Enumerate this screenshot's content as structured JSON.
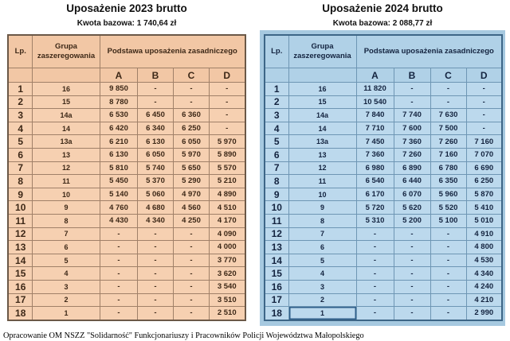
{
  "footer": "Opracowanie OM NSZZ \"Solidarność\" Funkcjonariuszy i Pracowników Policji Województwa Małopolskiego",
  "colors": {
    "peach_cell": "#f6d0b1",
    "peach_header": "#f2c7a5",
    "peach_border": "#a08068",
    "blue_cell": "#bcd9ed",
    "blue_header": "#b0d1e7",
    "blue_panel": "#a6c9e0",
    "blue_border": "#6e96b4"
  },
  "tables": [
    {
      "title": "Uposażenie 2023 brutto",
      "subtitle": "Kwota bazowa: 1 740,64 zł",
      "headers": {
        "lp": "Lp.",
        "group": "Grupa zaszeregowania",
        "base": "Podstawa uposażenia zasadniczego",
        "cols": [
          "A",
          "B",
          "C",
          "D"
        ]
      },
      "rows": [
        {
          "lp": "1",
          "group": "16",
          "v": [
            "9 850",
            "-",
            "-",
            "-"
          ]
        },
        {
          "lp": "2",
          "group": "15",
          "v": [
            "8 780",
            "-",
            "-",
            "-"
          ]
        },
        {
          "lp": "3",
          "group": "14a",
          "v": [
            "6 530",
            "6 450",
            "6 360",
            "-"
          ]
        },
        {
          "lp": "4",
          "group": "14",
          "v": [
            "6 420",
            "6 340",
            "6 250",
            "-"
          ]
        },
        {
          "lp": "5",
          "group": "13a",
          "v": [
            "6 210",
            "6 130",
            "6 050",
            "5 970"
          ]
        },
        {
          "lp": "6",
          "group": "13",
          "v": [
            "6 130",
            "6 050",
            "5 970",
            "5 890"
          ]
        },
        {
          "lp": "7",
          "group": "12",
          "v": [
            "5 810",
            "5 740",
            "5 650",
            "5 570"
          ]
        },
        {
          "lp": "8",
          "group": "11",
          "v": [
            "5 450",
            "5 370",
            "5 290",
            "5 210"
          ]
        },
        {
          "lp": "9",
          "group": "10",
          "v": [
            "5 140",
            "5 060",
            "4 970",
            "4 890"
          ]
        },
        {
          "lp": "10",
          "group": "9",
          "v": [
            "4 760",
            "4 680",
            "4 560",
            "4 510"
          ]
        },
        {
          "lp": "11",
          "group": "8",
          "v": [
            "4 430",
            "4 340",
            "4 250",
            "4 170"
          ]
        },
        {
          "lp": "12",
          "group": "7",
          "v": [
            "-",
            "-",
            "-",
            "4 090"
          ]
        },
        {
          "lp": "13",
          "group": "6",
          "v": [
            "-",
            "-",
            "-",
            "4 000"
          ]
        },
        {
          "lp": "14",
          "group": "5",
          "v": [
            "-",
            "-",
            "-",
            "3 770"
          ]
        },
        {
          "lp": "15",
          "group": "4",
          "v": [
            "-",
            "-",
            "-",
            "3 620"
          ]
        },
        {
          "lp": "16",
          "group": "3",
          "v": [
            "-",
            "-",
            "-",
            "3 540"
          ]
        },
        {
          "lp": "17",
          "group": "2",
          "v": [
            "-",
            "-",
            "-",
            "3 510"
          ]
        },
        {
          "lp": "18",
          "group": "1",
          "v": [
            "-",
            "-",
            "-",
            "2 510"
          ]
        }
      ]
    },
    {
      "title": "Uposażenie 2024 brutto",
      "subtitle": "Kwota bazowa: 2 088,77 zł",
      "headers": {
        "lp": "Lp.",
        "group": "Grupa zaszeregowania",
        "base": "Podstawa uposażenia zasadniczego",
        "cols": [
          "A",
          "B",
          "C",
          "D"
        ]
      },
      "rows": [
        {
          "lp": "1",
          "group": "16",
          "v": [
            "11 820",
            "-",
            "-",
            "-"
          ]
        },
        {
          "lp": "2",
          "group": "15",
          "v": [
            "10 540",
            "-",
            "-",
            "-"
          ]
        },
        {
          "lp": "3",
          "group": "14a",
          "v": [
            "7 840",
            "7 740",
            "7 630",
            "-"
          ]
        },
        {
          "lp": "4",
          "group": "14",
          "v": [
            "7 710",
            "7 600",
            "7 500",
            "-"
          ]
        },
        {
          "lp": "5",
          "group": "13a",
          "v": [
            "7 450",
            "7 360",
            "7 260",
            "7 160"
          ]
        },
        {
          "lp": "6",
          "group": "13",
          "v": [
            "7 360",
            "7 260",
            "7 160",
            "7 070"
          ]
        },
        {
          "lp": "7",
          "group": "12",
          "v": [
            "6 980",
            "6 890",
            "6 780",
            "6 690"
          ]
        },
        {
          "lp": "8",
          "group": "11",
          "v": [
            "6 540",
            "6 440",
            "6 350",
            "6 250"
          ]
        },
        {
          "lp": "9",
          "group": "10",
          "v": [
            "6 170",
            "6 070",
            "5 960",
            "5 870"
          ]
        },
        {
          "lp": "10",
          "group": "9",
          "v": [
            "5 720",
            "5 620",
            "5 520",
            "5 410"
          ]
        },
        {
          "lp": "11",
          "group": "8",
          "v": [
            "5 310",
            "5 200",
            "5 100",
            "5 010"
          ]
        },
        {
          "lp": "12",
          "group": "7",
          "v": [
            "-",
            "-",
            "-",
            "4 910"
          ]
        },
        {
          "lp": "13",
          "group": "6",
          "v": [
            "-",
            "-",
            "-",
            "4 800"
          ]
        },
        {
          "lp": "14",
          "group": "5",
          "v": [
            "-",
            "-",
            "-",
            "4 530"
          ]
        },
        {
          "lp": "15",
          "group": "4",
          "v": [
            "-",
            "-",
            "-",
            "4 340"
          ]
        },
        {
          "lp": "16",
          "group": "3",
          "v": [
            "-",
            "-",
            "-",
            "4 240"
          ]
        },
        {
          "lp": "17",
          "group": "2",
          "v": [
            "-",
            "-",
            "-",
            "4 210"
          ]
        },
        {
          "lp": "18",
          "group": "1",
          "v": [
            "-",
            "-",
            "-",
            "2 990"
          ]
        }
      ]
    }
  ]
}
